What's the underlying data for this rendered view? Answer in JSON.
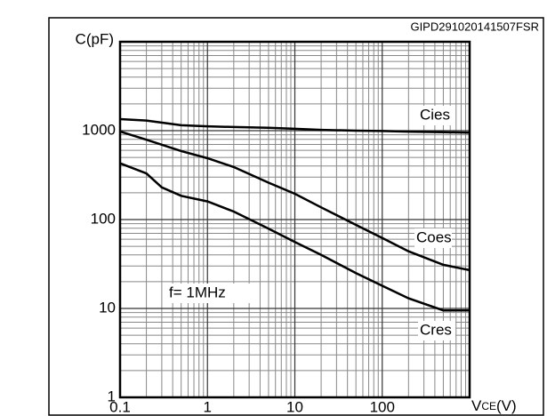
{
  "chart_data": {
    "type": "line",
    "code": "GIPD291020141507FSR",
    "ylabel": "C(pF)",
    "xlabel": {
      "main": "V",
      "sub": "CE",
      "unit": "(V)"
    },
    "annotation": "f= 1MHz",
    "xlog": true,
    "ylog": true,
    "grid": true,
    "minor_grid": true,
    "xlim": [
      0.1,
      1000
    ],
    "ylim": [
      1,
      10000
    ],
    "xticks": [
      0.1,
      1,
      10,
      100
    ],
    "yticks": [
      1,
      10,
      100,
      1000
    ],
    "series": [
      {
        "name": "Cies",
        "color": "#000000",
        "x": [
          0.1,
          0.2,
          0.5,
          1,
          2,
          5,
          10,
          20,
          50,
          100,
          200,
          500,
          1000
        ],
        "values": [
          1350,
          1300,
          1150,
          1120,
          1100,
          1080,
          1050,
          1020,
          1000,
          990,
          975,
          960,
          950
        ]
      },
      {
        "name": "Coes",
        "color": "#000000",
        "x": [
          0.1,
          0.2,
          0.5,
          1,
          2,
          5,
          10,
          20,
          50,
          100,
          200,
          500,
          1000
        ],
        "values": [
          980,
          790,
          590,
          490,
          390,
          260,
          195,
          137,
          87,
          62,
          44,
          31,
          27
        ]
      },
      {
        "name": "Cres",
        "color": "#000000",
        "x": [
          0.1,
          0.2,
          0.3,
          0.5,
          1,
          2,
          5,
          10,
          20,
          50,
          100,
          200,
          500,
          1000
        ],
        "values": [
          430,
          330,
          230,
          185,
          160,
          123,
          79,
          56,
          40,
          25,
          18,
          13,
          9.5,
          9.5
        ]
      }
    ]
  }
}
